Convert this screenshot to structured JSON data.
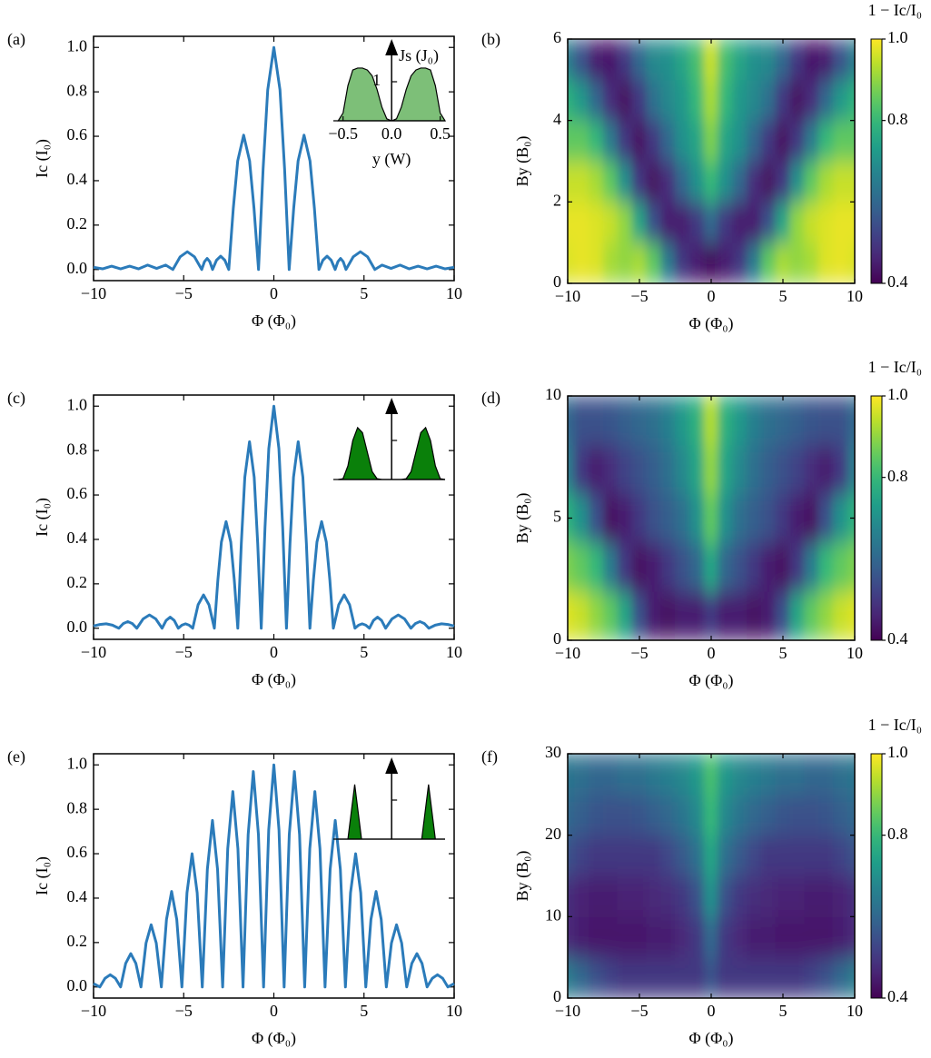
{
  "chart_data": [
    {
      "type": "line",
      "panel_label": "(a)",
      "xlabel": "Φ (Φ₀)",
      "ylabel": "Ic (I₀)",
      "color": "#2b7bba",
      "x": [
        -10,
        -9.5,
        -9,
        -8.5,
        -8,
        -7.5,
        -7,
        -6.5,
        -6,
        -5.6,
        -5.2,
        -4.8,
        -4.4,
        -4.0,
        -3.85,
        -3.7,
        -3.55,
        -3.4,
        -3.18,
        -2.95,
        -2.72,
        -2.5,
        -2.25,
        -2.005,
        -1.675,
        -1.345,
        -1.1,
        -0.85,
        -0.595,
        -0.34,
        0,
        0.34,
        0.595,
        0.85,
        1.1,
        1.345,
        1.675,
        2.005,
        2.25,
        2.5,
        2.72,
        2.95,
        3.18,
        3.4,
        3.55,
        3.7,
        3.85,
        4.0,
        4.4,
        4.8,
        5.2,
        5.6,
        6,
        6.5,
        7,
        7.5,
        8,
        8.5,
        9,
        9.5,
        10
      ],
      "values": [
        0.01,
        0.003,
        0.015,
        0.003,
        0.015,
        0.003,
        0.02,
        0.005,
        0.02,
        0,
        0.057,
        0.08,
        0.057,
        0,
        0.035,
        0.05,
        0.035,
        0,
        0.042,
        0.06,
        0.042,
        0,
        0.275,
        0.489,
        0.605,
        0.489,
        0.275,
        0,
        0.454,
        0.809,
        1,
        0.809,
        0.454,
        0,
        0.275,
        0.489,
        0.605,
        0.489,
        0.275,
        0,
        0.042,
        0.06,
        0.042,
        0,
        0.035,
        0.05,
        0.035,
        0,
        0.057,
        0.08,
        0.057,
        0,
        0.02,
        0.005,
        0.02,
        0.003,
        0.015,
        0.003,
        0.015,
        0.003,
        0.01
      ],
      "xlim": [
        -10,
        10
      ],
      "ylim": [
        -0.05,
        1.05
      ],
      "xticks": [
        {
          "value": -10,
          "label": "−10"
        },
        {
          "value": -5,
          "label": "−5"
        },
        0,
        5,
        10
      ],
      "yticks": [
        {
          "value": 0,
          "label": "0.0"
        },
        0.2,
        0.4,
        0.6,
        0.8,
        {
          "value": 1,
          "label": "1.0"
        }
      ]
    },
    {
      "type": "area",
      "xlabel": "y (W)",
      "ylabel": "Js (J₀)",
      "color": "#7dbf78",
      "x": [
        -0.55,
        -0.5,
        -0.45,
        -0.4,
        -0.35,
        -0.3,
        -0.25,
        -0.2,
        -0.15,
        -0.1,
        -0.05,
        0,
        0.05,
        0.1,
        0.15,
        0.2,
        0.25,
        0.3,
        0.35,
        0.4,
        0.45,
        0.5,
        0.55
      ],
      "values": [
        0,
        0.2,
        0.9,
        1.3,
        1.35,
        1.35,
        1.3,
        1.15,
        0.8,
        0.35,
        0.05,
        0,
        0.05,
        0.35,
        0.8,
        1.15,
        1.3,
        1.35,
        1.35,
        1.3,
        0.9,
        0.2,
        0
      ],
      "xlim": [
        -0.6,
        0.55
      ],
      "ylim": [
        0,
        2
      ],
      "xticks": [
        {
          "value": -0.5,
          "label": "−0.5"
        },
        {
          "value": 0,
          "label": "0.0"
        },
        0.5
      ],
      "yticks": [
        1
      ],
      "show_tick_labels": true
    },
    {
      "type": "heatmap",
      "panel_label": "(b)",
      "xlabel": "Φ (Φ₀)",
      "ylabel": "By (B₀)",
      "colorbar_label": "1 − Ic/I₀",
      "colormap": "viridis",
      "x": [
        -10,
        -9,
        -8,
        -7,
        -6,
        -5,
        -4,
        -3,
        -2,
        -1,
        0,
        1,
        2,
        3,
        4,
        5,
        6,
        7,
        8,
        9,
        10
      ],
      "y": [
        0.5,
        1.5,
        2.5,
        3.5,
        4.5,
        5.5
      ],
      "z": [
        [
          0.97,
          0.98,
          0.97,
          0.92,
          0.9,
          0.92,
          0.85,
          0.65,
          0.5,
          0.45,
          0.42,
          0.45,
          0.5,
          0.65,
          0.85,
          0.92,
          0.9,
          0.92,
          0.97,
          0.98,
          0.97
        ],
        [
          0.98,
          0.98,
          0.97,
          0.95,
          0.9,
          0.75,
          0.55,
          0.45,
          0.45,
          0.5,
          0.6,
          0.5,
          0.45,
          0.45,
          0.55,
          0.75,
          0.9,
          0.95,
          0.97,
          0.98,
          0.98
        ],
        [
          0.95,
          0.95,
          0.92,
          0.85,
          0.7,
          0.5,
          0.43,
          0.48,
          0.6,
          0.7,
          0.8,
          0.7,
          0.6,
          0.48,
          0.43,
          0.5,
          0.7,
          0.85,
          0.92,
          0.95,
          0.95
        ],
        [
          0.85,
          0.85,
          0.8,
          0.65,
          0.5,
          0.43,
          0.5,
          0.6,
          0.7,
          0.75,
          0.88,
          0.75,
          0.7,
          0.6,
          0.5,
          0.43,
          0.5,
          0.65,
          0.8,
          0.85,
          0.85
        ],
        [
          0.78,
          0.72,
          0.6,
          0.48,
          0.43,
          0.5,
          0.62,
          0.68,
          0.72,
          0.8,
          0.92,
          0.8,
          0.72,
          0.68,
          0.62,
          0.5,
          0.43,
          0.48,
          0.6,
          0.72,
          0.78
        ],
        [
          0.65,
          0.55,
          0.45,
          0.44,
          0.5,
          0.6,
          0.68,
          0.7,
          0.75,
          0.82,
          0.95,
          0.82,
          0.75,
          0.7,
          0.68,
          0.6,
          0.5,
          0.44,
          0.45,
          0.55,
          0.65
        ]
      ],
      "xlim": [
        -10,
        10
      ],
      "ylim": [
        0,
        6
      ],
      "zlim": [
        0.4,
        1.0
      ],
      "xticks": [
        {
          "value": -10,
          "label": "−10"
        },
        {
          "value": -5,
          "label": "−5"
        },
        0,
        5,
        10
      ],
      "yticks": [
        0,
        2,
        4,
        6
      ],
      "zticks": [
        0.4,
        0.8,
        {
          "value": 1,
          "label": "1.0"
        }
      ]
    },
    {
      "type": "line",
      "panel_label": "(c)",
      "xlabel": "Φ (Φ₀)",
      "ylabel": "Ic (I₀)",
      "color": "#2b7bba",
      "x": [
        -10,
        -9.65,
        -9.3,
        -8.95,
        -8.6,
        -8.35,
        -8.1,
        -7.85,
        -7.6,
        -7.25,
        -6.9,
        -6.55,
        -6.2,
        -5.975,
        -5.75,
        -5.525,
        -5.3,
        -5.1,
        -4.9,
        -4.7,
        -4.5,
        -4.2,
        -3.9,
        -3.6,
        -3.3,
        -3.105,
        -2.91,
        -2.65,
        -2.39,
        -2.195,
        -2.0,
        -1.805,
        -1.61,
        -1.35,
        -1.09,
        -0.895,
        -0.7,
        -0.49,
        -0.28,
        0,
        0.28,
        0.49,
        0.7,
        0.895,
        1.09,
        1.35,
        1.61,
        1.805,
        2.0,
        2.195,
        2.39,
        2.65,
        2.91,
        3.105,
        3.3,
        3.6,
        3.9,
        4.2,
        4.5,
        4.7,
        4.9,
        5.1,
        5.3,
        5.525,
        5.75,
        5.975,
        6.2,
        6.55,
        6.9,
        7.25,
        7.6,
        7.85,
        8.1,
        8.35,
        8.6,
        8.95,
        9.3,
        9.65,
        10
      ],
      "values": [
        0.01,
        0.017,
        0.02,
        0.014,
        0,
        0.021,
        0.03,
        0.021,
        0,
        0.042,
        0.06,
        0.042,
        0,
        0.035,
        0.05,
        0.035,
        0,
        0.014,
        0.02,
        0.014,
        0,
        0.106,
        0.15,
        0.106,
        0,
        0.218,
        0.388,
        0.48,
        0.388,
        0.218,
        0,
        0.381,
        0.68,
        0.84,
        0.68,
        0.381,
        0,
        0.454,
        0.809,
        1,
        0.809,
        0.454,
        0,
        0.381,
        0.68,
        0.84,
        0.68,
        0.381,
        0,
        0.218,
        0.388,
        0.48,
        0.388,
        0.218,
        0,
        0.106,
        0.15,
        0.106,
        0,
        0.014,
        0.02,
        0.014,
        0,
        0.035,
        0.05,
        0.035,
        0,
        0.042,
        0.06,
        0.042,
        0,
        0.021,
        0.03,
        0.021,
        0,
        0.014,
        0.02,
        0.017,
        0.01
      ],
      "xlim": [
        -10,
        10
      ],
      "ylim": [
        -0.05,
        1.05
      ],
      "xticks": [
        {
          "value": -10,
          "label": "−10"
        },
        {
          "value": -5,
          "label": "−5"
        },
        0,
        5,
        10
      ],
      "yticks": [
        {
          "value": 0,
          "label": "0.0"
        },
        0.2,
        0.4,
        0.6,
        0.8,
        {
          "value": 1,
          "label": "1.0"
        }
      ]
    },
    {
      "type": "area",
      "color": "#0a800a",
      "x": [
        -0.55,
        -0.5,
        -0.45,
        -0.4,
        -0.35,
        -0.3,
        -0.25,
        -0.2,
        -0.15,
        -0.1,
        0,
        0.1,
        0.15,
        0.2,
        0.25,
        0.3,
        0.35,
        0.4,
        0.45,
        0.5,
        0.55
      ],
      "values": [
        0,
        0.02,
        0.35,
        1.0,
        1.33,
        1.2,
        0.7,
        0.2,
        0.02,
        0,
        0,
        0,
        0.02,
        0.2,
        0.7,
        1.2,
        1.33,
        1.0,
        0.35,
        0.02,
        0
      ],
      "xlim": [
        -0.6,
        0.55
      ],
      "ylim": [
        0,
        2
      ],
      "yticks": [
        1
      ],
      "show_tick_labels": false
    },
    {
      "type": "heatmap",
      "panel_label": "(d)",
      "xlabel": "Φ (Φ₀)",
      "ylabel": "By (B₀)",
      "colorbar_label": "1 − Ic/I₀",
      "colormap": "viridis",
      "x": [
        -10,
        -9,
        -8,
        -7,
        -6,
        -5,
        -4,
        -3,
        -2,
        -1,
        0,
        1,
        2,
        3,
        4,
        5,
        6,
        7,
        8,
        9,
        10
      ],
      "y": [
        1,
        3,
        5,
        7,
        9
      ],
      "z": [
        [
          0.97,
          0.95,
          0.9,
          0.85,
          0.75,
          0.55,
          0.45,
          0.43,
          0.45,
          0.45,
          0.5,
          0.45,
          0.45,
          0.43,
          0.45,
          0.55,
          0.75,
          0.85,
          0.9,
          0.95,
          0.97
        ],
        [
          0.88,
          0.85,
          0.8,
          0.65,
          0.5,
          0.43,
          0.45,
          0.5,
          0.55,
          0.6,
          0.75,
          0.6,
          0.55,
          0.5,
          0.45,
          0.43,
          0.5,
          0.65,
          0.8,
          0.85,
          0.88
        ],
        [
          0.78,
          0.7,
          0.55,
          0.43,
          0.45,
          0.5,
          0.55,
          0.58,
          0.62,
          0.7,
          0.85,
          0.7,
          0.62,
          0.58,
          0.55,
          0.5,
          0.45,
          0.43,
          0.55,
          0.7,
          0.78
        ],
        [
          0.65,
          0.5,
          0.45,
          0.48,
          0.52,
          0.55,
          0.58,
          0.62,
          0.68,
          0.75,
          0.9,
          0.75,
          0.68,
          0.62,
          0.58,
          0.55,
          0.52,
          0.48,
          0.45,
          0.5,
          0.65
        ],
        [
          0.6,
          0.55,
          0.55,
          0.56,
          0.58,
          0.6,
          0.62,
          0.66,
          0.72,
          0.78,
          0.93,
          0.78,
          0.72,
          0.66,
          0.62,
          0.6,
          0.58,
          0.56,
          0.55,
          0.55,
          0.6
        ]
      ],
      "xlim": [
        -10,
        10
      ],
      "ylim": [
        0,
        10
      ],
      "zlim": [
        0.4,
        1.0
      ],
      "xticks": [
        {
          "value": -10,
          "label": "−10"
        },
        {
          "value": -5,
          "label": "−5"
        },
        0,
        5,
        10
      ],
      "yticks": [
        0,
        5,
        10
      ],
      "zticks": [
        0.4,
        0.8,
        {
          "value": 1,
          "label": "1.0"
        }
      ]
    },
    {
      "type": "line",
      "panel_label": "(e)",
      "xlabel": "Φ (Φ₀)",
      "ylabel": "Ic (I₀)",
      "color": "#2b7bba",
      "x": [
        -10,
        -9.65,
        -9.363,
        -9.075,
        -8.788,
        -8.5,
        -8.218,
        -7.935,
        -7.653,
        -7.37,
        -7.088,
        -6.805,
        -6.523,
        -6.24,
        -5.955,
        -5.67,
        -5.385,
        -5.1,
        -4.818,
        -4.535,
        -4.253,
        -3.97,
        -3.688,
        -3.405,
        -3.123,
        -2.84,
        -2.558,
        -2.275,
        -1.993,
        -1.71,
        -1.425,
        -1.14,
        -0.855,
        -0.57,
        -0.285,
        0,
        0.285,
        0.57,
        0.855,
        1.14,
        1.425,
        1.71,
        1.993,
        2.275,
        2.558,
        2.84,
        3.123,
        3.405,
        3.688,
        3.97,
        4.253,
        4.535,
        4.818,
        5.1,
        5.385,
        5.67,
        5.955,
        6.24,
        6.523,
        6.805,
        7.088,
        7.37,
        7.653,
        7.935,
        8.218,
        8.5,
        8.788,
        9.075,
        9.363,
        9.65,
        10
      ],
      "values": [
        0.015,
        0,
        0.039,
        0.055,
        0.039,
        0,
        0.106,
        0.15,
        0.106,
        0,
        0.198,
        0.28,
        0.198,
        0,
        0.304,
        0.43,
        0.304,
        0,
        0.424,
        0.6,
        0.424,
        0,
        0.53,
        0.75,
        0.53,
        0,
        0.622,
        0.88,
        0.622,
        0,
        0.686,
        0.97,
        0.686,
        0,
        0.707,
        1,
        0.707,
        0,
        0.686,
        0.97,
        0.686,
        0,
        0.622,
        0.88,
        0.622,
        0,
        0.53,
        0.75,
        0.53,
        0,
        0.424,
        0.6,
        0.424,
        0,
        0.304,
        0.43,
        0.304,
        0,
        0.198,
        0.28,
        0.198,
        0,
        0.106,
        0.15,
        0.106,
        0,
        0.039,
        0.055,
        0.039,
        0,
        0.015
      ],
      "xlim": [
        -10,
        10
      ],
      "ylim": [
        -0.05,
        1.05
      ],
      "xticks": [
        {
          "value": -10,
          "label": "−10"
        },
        {
          "value": -5,
          "label": "−5"
        },
        0,
        5,
        10
      ],
      "yticks": [
        {
          "value": 0,
          "label": "0.0"
        },
        0.2,
        0.4,
        0.6,
        0.8,
        {
          "value": 1,
          "label": "1.0"
        }
      ]
    },
    {
      "type": "area",
      "color": "#0a800a",
      "x": [
        -0.55,
        -0.45,
        -0.42,
        -0.38,
        -0.34,
        -0.31,
        0,
        0.31,
        0.34,
        0.38,
        0.42,
        0.45,
        0.55
      ],
      "values": [
        0,
        0,
        0.6,
        1.4,
        0.6,
        0,
        0,
        0,
        0.6,
        1.4,
        0.6,
        0,
        0
      ],
      "xlim": [
        -0.6,
        0.55
      ],
      "ylim": [
        0,
        2
      ],
      "yticks": [
        1
      ],
      "show_tick_labels": false
    },
    {
      "type": "heatmap",
      "panel_label": "(f)",
      "xlabel": "Φ (Φ₀)",
      "ylabel": "By (B₀)",
      "colorbar_label": "1 − Ic/I₀",
      "colormap": "viridis",
      "x": [
        -10,
        -9,
        -8,
        -7,
        -6,
        -5,
        -4,
        -3,
        -2,
        -1,
        0,
        1,
        2,
        3,
        4,
        5,
        6,
        7,
        8,
        9,
        10
      ],
      "y": [
        2.5,
        7.5,
        12.5,
        17.5,
        22.5,
        27.5
      ],
      "z": [
        [
          0.65,
          0.6,
          0.55,
          0.52,
          0.5,
          0.5,
          0.5,
          0.5,
          0.5,
          0.5,
          0.55,
          0.5,
          0.5,
          0.5,
          0.5,
          0.5,
          0.5,
          0.52,
          0.55,
          0.6,
          0.65
        ],
        [
          0.47,
          0.45,
          0.44,
          0.44,
          0.44,
          0.44,
          0.45,
          0.45,
          0.47,
          0.5,
          0.6,
          0.5,
          0.47,
          0.45,
          0.45,
          0.44,
          0.44,
          0.44,
          0.44,
          0.45,
          0.47
        ],
        [
          0.48,
          0.46,
          0.45,
          0.45,
          0.46,
          0.46,
          0.47,
          0.48,
          0.5,
          0.55,
          0.7,
          0.55,
          0.5,
          0.48,
          0.47,
          0.46,
          0.46,
          0.45,
          0.45,
          0.46,
          0.48
        ],
        [
          0.55,
          0.52,
          0.5,
          0.5,
          0.5,
          0.5,
          0.5,
          0.53,
          0.57,
          0.62,
          0.75,
          0.62,
          0.57,
          0.53,
          0.5,
          0.5,
          0.5,
          0.5,
          0.5,
          0.52,
          0.55
        ],
        [
          0.6,
          0.58,
          0.56,
          0.55,
          0.55,
          0.56,
          0.58,
          0.6,
          0.63,
          0.68,
          0.8,
          0.68,
          0.63,
          0.6,
          0.58,
          0.56,
          0.55,
          0.55,
          0.56,
          0.58,
          0.6
        ],
        [
          0.63,
          0.62,
          0.6,
          0.6,
          0.62,
          0.62,
          0.64,
          0.66,
          0.68,
          0.72,
          0.82,
          0.72,
          0.68,
          0.66,
          0.64,
          0.62,
          0.62,
          0.6,
          0.6,
          0.62,
          0.63
        ]
      ],
      "xlim": [
        -10,
        10
      ],
      "ylim": [
        0,
        30
      ],
      "zlim": [
        0.4,
        1.0
      ],
      "xticks": [
        {
          "value": -10,
          "label": "−10"
        },
        {
          "value": -5,
          "label": "−5"
        },
        0,
        5,
        10
      ],
      "yticks": [
        0,
        10,
        20,
        30
      ],
      "zticks": [
        0.4,
        0.8,
        {
          "value": 1,
          "label": "1.0"
        }
      ]
    }
  ]
}
